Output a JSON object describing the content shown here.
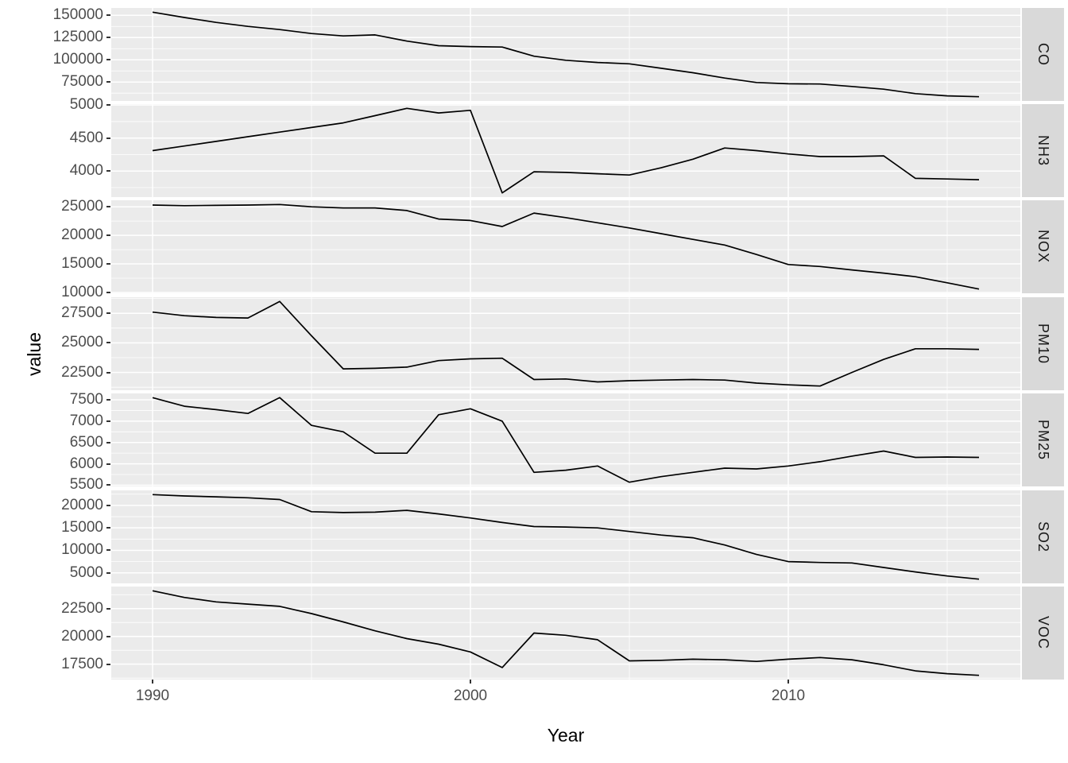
{
  "figure": {
    "y_axis_title": "value",
    "x_axis_title": "Year",
    "colors": {
      "background": "#FFFFFF",
      "panel_background": "#EBEBEB",
      "strip_background": "#D9D9D9",
      "gridline": "#FFFFFF",
      "series_line": "#000000",
      "tick_label": "#4D4D4D",
      "axis_title": "#000000",
      "strip_text": "#1A1A1A",
      "tick_mark": "#333333"
    }
  },
  "chart_data": {
    "type": "line",
    "title": "",
    "xlabel": "Year",
    "ylabel": "value",
    "grid": true,
    "legend": false,
    "facet_position": "right",
    "x_axis_tick_years": [
      1990,
      2000,
      2010
    ],
    "x_minor_tick_years": [
      1995,
      2005,
      2015
    ],
    "years": [
      1990,
      1991,
      1992,
      1993,
      1994,
      1995,
      1996,
      1997,
      1998,
      1999,
      2000,
      2001,
      2002,
      2003,
      2004,
      2005,
      2006,
      2007,
      2008,
      2009,
      2010,
      2011,
      2012,
      2013,
      2014,
      2015,
      2016
    ],
    "facets": [
      {
        "label": "CO",
        "y_ticks": [
          150000,
          125000,
          100000,
          75000
        ],
        "values": [
          153500,
          147500,
          142000,
          137500,
          134000,
          129500,
          126800,
          128000,
          121000,
          115800,
          114800,
          114300,
          104000,
          99500,
          97000,
          95500,
          90500,
          85500,
          79500,
          74500,
          73000,
          72800,
          70000,
          67000,
          62000,
          59500,
          58500
        ]
      },
      {
        "label": "NH3",
        "y_ticks": [
          5000,
          4500,
          4000
        ],
        "values": [
          4310,
          4380,
          4450,
          4520,
          4590,
          4660,
          4730,
          4840,
          4950,
          4880,
          4920,
          3670,
          3990,
          3980,
          3960,
          3940,
          4050,
          4180,
          4350,
          4310,
          4260,
          4220,
          4220,
          4230,
          3890,
          3880,
          3870
        ]
      },
      {
        "label": "NOX",
        "y_ticks": [
          25000,
          20000,
          15000,
          10000
        ],
        "values": [
          25300,
          25200,
          25250,
          25300,
          25400,
          25000,
          24800,
          24800,
          24350,
          22850,
          22600,
          21550,
          23900,
          23100,
          22200,
          21300,
          20300,
          19300,
          18300,
          16650,
          14900,
          14550,
          13950,
          13400,
          12750,
          11700,
          10600
        ]
      },
      {
        "label": "PM10",
        "y_ticks": [
          27500,
          25000,
          22500
        ],
        "values": [
          27600,
          27300,
          27150,
          27100,
          28500,
          25600,
          22800,
          22850,
          22950,
          23500,
          23650,
          23700,
          21900,
          21950,
          21700,
          21800,
          21850,
          21900,
          21850,
          21600,
          21450,
          21350,
          22500,
          23600,
          24500,
          24500,
          24450
        ]
      },
      {
        "label": "PM25",
        "y_ticks": [
          7500,
          7000,
          6500,
          6000,
          5500
        ],
        "values": [
          7550,
          7350,
          7270,
          7180,
          7550,
          6900,
          6750,
          6250,
          6250,
          7150,
          7290,
          7000,
          5800,
          5850,
          5950,
          5570,
          5700,
          5800,
          5900,
          5880,
          5950,
          6050,
          6180,
          6300,
          6150,
          6160,
          6150
        ]
      },
      {
        "label": "SO2",
        "y_ticks": [
          20000,
          15000,
          10000,
          5000
        ],
        "values": [
          22400,
          22100,
          21900,
          21700,
          21300,
          18600,
          18400,
          18500,
          18900,
          18100,
          17200,
          16200,
          15300,
          15200,
          15000,
          14200,
          13400,
          12800,
          11200,
          9100,
          7500,
          7300,
          7200,
          6200,
          5200,
          4300,
          3600
        ]
      },
      {
        "label": "VOC",
        "y_ticks": [
          22500,
          20000,
          17500
        ],
        "values": [
          24100,
          23500,
          23100,
          22900,
          22700,
          22050,
          21300,
          20500,
          19800,
          19300,
          18600,
          17200,
          20300,
          20100,
          19700,
          17800,
          17850,
          17950,
          17900,
          17750,
          17950,
          18100,
          17900,
          17450,
          16900,
          16650,
          16500
        ]
      }
    ]
  }
}
